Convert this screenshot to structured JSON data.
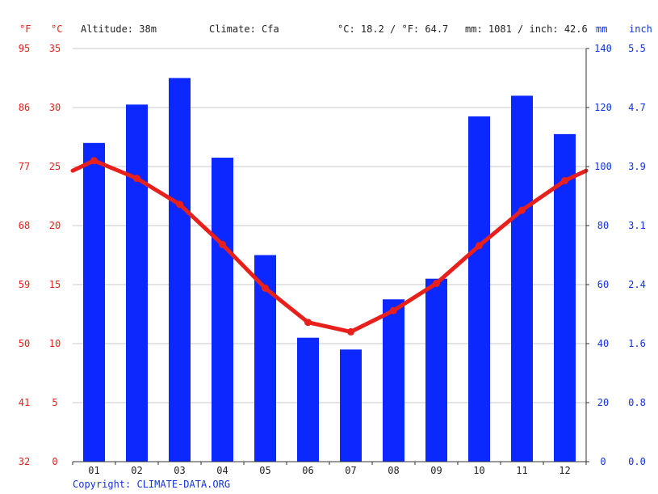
{
  "header": {
    "unit_f": "°F",
    "unit_c": "°C",
    "altitude": "Altitude: 38m",
    "climate": "Climate: Cfa",
    "temp_avg": "°C: 18.2 / °F: 64.7",
    "precip_total": "mm: 1081 / inch: 42.6",
    "unit_mm": "mm",
    "unit_inch": "inch"
  },
  "footer": {
    "copyright": "Copyright: CLIMATE-DATA.ORG"
  },
  "colors": {
    "temperature": "#e8201c",
    "precipitation": "#0a28ff",
    "grid": "#c8c8c8"
  },
  "chart_data": {
    "type": "bar",
    "categories": [
      "01",
      "02",
      "03",
      "04",
      "05",
      "06",
      "07",
      "08",
      "09",
      "10",
      "11",
      "12"
    ],
    "series": [
      {
        "type": "bar",
        "axis": "right",
        "values": [
          108,
          121,
          130,
          103,
          70,
          42,
          38,
          55,
          62,
          117,
          124,
          111
        ]
      },
      {
        "type": "line",
        "axis": "left",
        "values": [
          25.5,
          24.0,
          21.8,
          18.4,
          14.7,
          11.8,
          11.0,
          12.8,
          15.1,
          18.3,
          21.3,
          23.8
        ]
      }
    ],
    "ylim_celsius": [
      0,
      35
    ],
    "ylim_mm": [
      0,
      140
    ],
    "y_ticks_celsius": [
      "0",
      "5",
      "10",
      "15",
      "20",
      "25",
      "30",
      "35"
    ],
    "y_ticks_fahrenheit": [
      "32",
      "41",
      "50",
      "59",
      "68",
      "77",
      "86",
      "95"
    ],
    "y_ticks_mm": [
      "0",
      "20",
      "40",
      "60",
      "80",
      "100",
      "120",
      "140"
    ],
    "y_ticks_inch": [
      "0.0",
      "0.8",
      "1.6",
      "2.4",
      "3.1",
      "3.9",
      "4.7",
      "5.5"
    ],
    "grid": true
  }
}
